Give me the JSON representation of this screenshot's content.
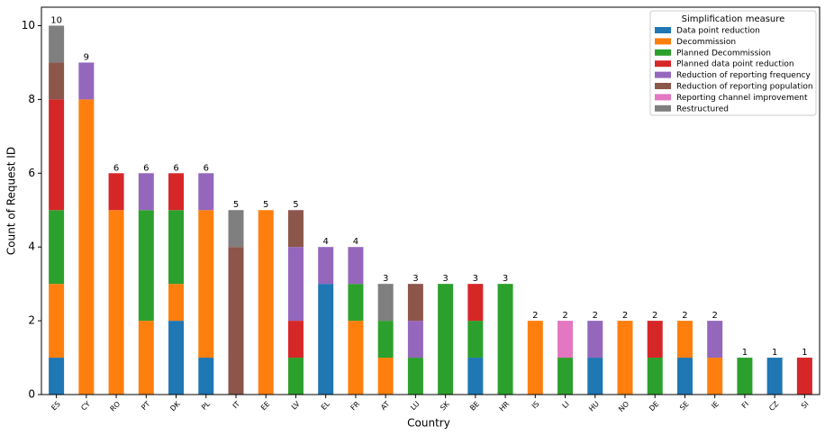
{
  "chart_data": {
    "type": "bar",
    "stacked": true,
    "x_label": "Country",
    "y_label": "Count of Request ID",
    "legend_title": "Simplification measure",
    "legend_position": "upper right",
    "categories": [
      "ES",
      "CY",
      "RO",
      "PT",
      "DK",
      "PL",
      "IT",
      "EE",
      "LV",
      "EL",
      "FR",
      "AT",
      "LU",
      "SK",
      "BE",
      "HR",
      "IS",
      "LI",
      "HU",
      "NO",
      "DE",
      "SE",
      "IE",
      "FI",
      "CZ",
      "SI"
    ],
    "totals": [
      10,
      9,
      6,
      6,
      6,
      6,
      5,
      5,
      5,
      4,
      4,
      3,
      3,
      3,
      3,
      3,
      2,
      2,
      2,
      2,
      2,
      2,
      2,
      1,
      1,
      1
    ],
    "series": [
      {
        "name": "Data point reduction",
        "color": "#1f77b4",
        "values": [
          1,
          0,
          0,
          0,
          2,
          1,
          0,
          0,
          0,
          3,
          0,
          0,
          0,
          0,
          1,
          0,
          0,
          0,
          1,
          0,
          0,
          1,
          0,
          0,
          1,
          0
        ]
      },
      {
        "name": "Decommission",
        "color": "#ff7f0e",
        "values": [
          2,
          8,
          5,
          2,
          1,
          4,
          0,
          5,
          0,
          0,
          2,
          1,
          0,
          0,
          0,
          0,
          2,
          0,
          0,
          2,
          0,
          1,
          1,
          0,
          0,
          0
        ]
      },
      {
        "name": "Planned Decommission",
        "color": "#2ca02c",
        "values": [
          2,
          0,
          0,
          3,
          2,
          0,
          0,
          0,
          1,
          0,
          1,
          1,
          1,
          3,
          1,
          3,
          0,
          1,
          0,
          0,
          1,
          0,
          0,
          1,
          0,
          0
        ]
      },
      {
        "name": "Planned data point reduction",
        "color": "#d62728",
        "values": [
          3,
          0,
          1,
          0,
          1,
          0,
          0,
          0,
          1,
          0,
          0,
          0,
          0,
          0,
          1,
          0,
          0,
          0,
          0,
          0,
          1,
          0,
          0,
          0,
          0,
          1
        ]
      },
      {
        "name": "Reduction of reporting frequency",
        "color": "#9467bd",
        "values": [
          0,
          1,
          0,
          1,
          0,
          1,
          0,
          0,
          2,
          1,
          1,
          0,
          1,
          0,
          0,
          0,
          0,
          0,
          1,
          0,
          0,
          0,
          1,
          0,
          0,
          0
        ]
      },
      {
        "name": "Reduction of reporting population",
        "color": "#8c564b",
        "values": [
          1,
          0,
          0,
          0,
          0,
          0,
          4,
          0,
          1,
          0,
          0,
          0,
          1,
          0,
          0,
          0,
          0,
          0,
          0,
          0,
          0,
          0,
          0,
          0,
          0,
          0
        ]
      },
      {
        "name": "Reporting channel improvement",
        "color": "#e377c2",
        "values": [
          0,
          0,
          0,
          0,
          0,
          0,
          0,
          0,
          0,
          0,
          0,
          0,
          0,
          0,
          0,
          0,
          0,
          1,
          0,
          0,
          0,
          0,
          0,
          0,
          0,
          0
        ]
      },
      {
        "name": "Restructured",
        "color": "#7f7f7f",
        "values": [
          1,
          0,
          0,
          0,
          0,
          0,
          1,
          0,
          0,
          0,
          0,
          1,
          0,
          0,
          0,
          0,
          0,
          0,
          0,
          0,
          0,
          0,
          0,
          0,
          0,
          0
        ]
      }
    ],
    "ylim": [
      0,
      10.5
    ],
    "yticks": [
      0,
      2,
      4,
      6,
      8,
      10
    ],
    "grid": false
  }
}
